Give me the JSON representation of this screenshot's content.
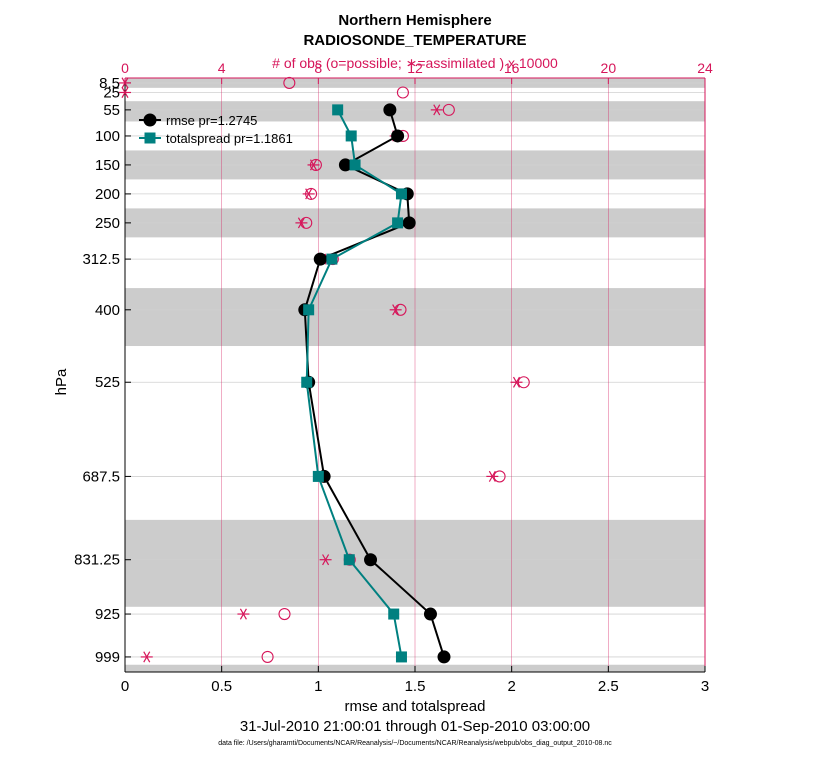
{
  "chart_data": {
    "type": "line",
    "title": "Northern Hemisphere",
    "subtitle": "RADIOSONDE_TEMPERATURE",
    "top_axis_label": "# of obs (o=possible; ∗=assimilated ) x 10000",
    "xlabel": "rmse and totalspread",
    "ylabel": "hPa",
    "date_range": "31-Jul-2010 21:00:01 through 01-Sep-2010 03:00:00",
    "footnote": "data file: /Users/gharamti/Documents/NCAR/Reanalysis/~/Documents/NCAR/Reanalysis/webpub/obs_diag_output_2010-08.nc",
    "xlim": [
      0,
      3
    ],
    "x_ticks": [
      0,
      0.5,
      1,
      1.5,
      2,
      2.5,
      3
    ],
    "x_tick_labels": [
      "0",
      "0.5",
      "1",
      "1.5",
      "2",
      "2.5",
      "3"
    ],
    "top_xlim": [
      0,
      24
    ],
    "top_ticks": [
      0,
      4,
      8,
      12,
      16,
      20,
      24
    ],
    "top_tick_labels": [
      "0",
      "4",
      "8",
      "12",
      "16",
      "20",
      "24"
    ],
    "ylim": [
      1025,
      0
    ],
    "levels": [
      8.5,
      25,
      55,
      100,
      150,
      200,
      250,
      312.5,
      400,
      525,
      687.5,
      831.25,
      925,
      999
    ],
    "level_labels": [
      "8.5",
      "25",
      "55",
      "100",
      "150",
      "200",
      "250",
      "312.5",
      "400",
      "525",
      "687.5",
      "831.25",
      "925",
      "999"
    ],
    "shaded_bands": [
      [
        0,
        17
      ],
      [
        40,
        75
      ],
      [
        125,
        175
      ],
      [
        225,
        275
      ],
      [
        362.5,
        462.5
      ],
      [
        762.5,
        912.5
      ],
      [
        1012.5,
        1025
      ]
    ],
    "series": [
      {
        "name": "rmse pr=1.2745",
        "color": "#000000",
        "marker": "circle",
        "pressure": [
          55,
          100,
          150,
          200,
          250,
          312.5,
          400,
          525,
          687.5,
          831.25,
          925,
          999
        ],
        "values": [
          1.37,
          1.41,
          1.14,
          1.46,
          1.47,
          1.01,
          0.93,
          0.95,
          1.03,
          1.27,
          1.58,
          1.65
        ]
      },
      {
        "name": "totalspread pr=1.1861",
        "color": "#008080",
        "marker": "square",
        "pressure": [
          55,
          100,
          150,
          200,
          250,
          312.5,
          400,
          525,
          687.5,
          831.25,
          925,
          999
        ],
        "values": [
          1.1,
          1.17,
          1.19,
          1.43,
          1.41,
          1.07,
          0.95,
          0.94,
          1.0,
          1.16,
          1.39,
          1.43
        ]
      }
    ],
    "obs_counts": {
      "color": "#d6165a",
      "pressure": [
        8.5,
        25,
        55,
        100,
        150,
        200,
        250,
        312.5,
        400,
        525,
        687.5,
        831.25,
        925,
        999
      ],
      "possible": [
        6.8,
        11.5,
        13.4,
        11.5,
        7.9,
        7.7,
        7.5,
        8.6,
        11.4,
        16.5,
        15.5,
        9.3,
        6.6,
        5.9
      ],
      "assimilated": [
        0.0,
        0.0,
        12.9,
        11.2,
        7.8,
        7.6,
        7.3,
        8.4,
        11.2,
        16.2,
        15.2,
        8.3,
        4.9,
        0.9
      ]
    }
  }
}
